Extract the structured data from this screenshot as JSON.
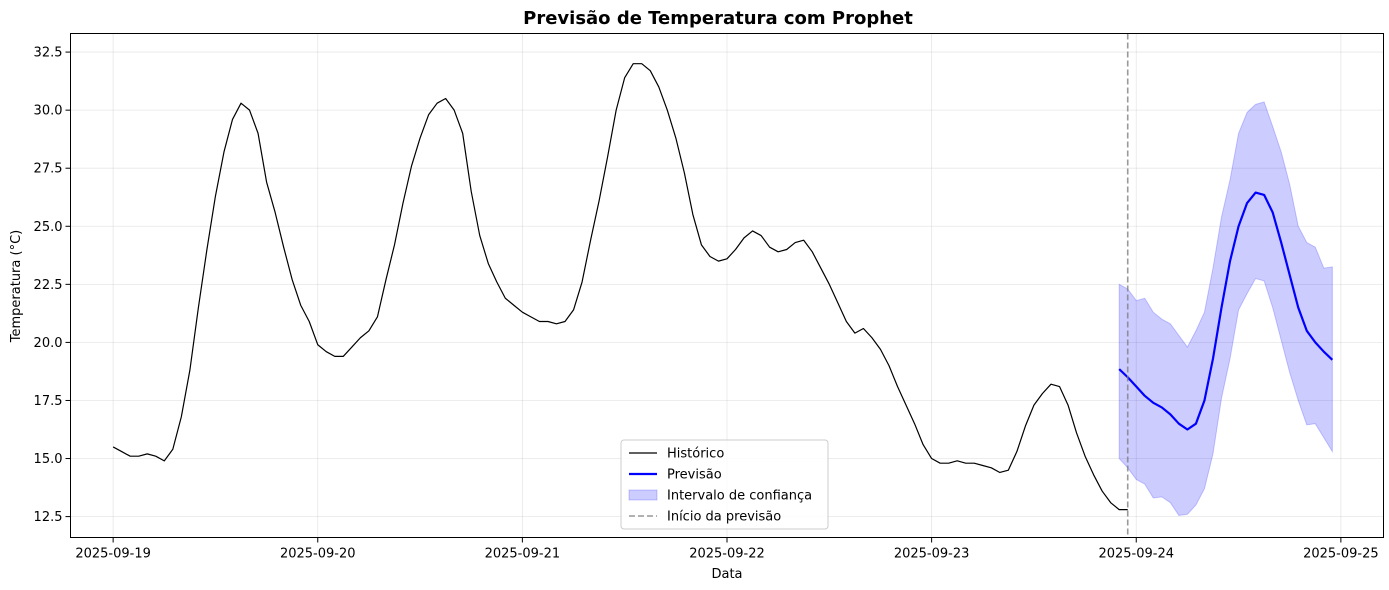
{
  "chart_data": {
    "type": "line",
    "title": "Previsão de Temperatura com Prophet",
    "xlabel": "Data",
    "ylabel": "Temperatura (°C)",
    "x_ticks": [
      "2025-09-19",
      "2025-09-20",
      "2025-09-21",
      "2025-09-22",
      "2025-09-23",
      "2025-09-24",
      "2025-09-25"
    ],
    "y_ticks": [
      "12.5",
      "15.0",
      "17.5",
      "20.0",
      "22.5",
      "25.0",
      "27.5",
      "30.0",
      "32.5"
    ],
    "xlim": [
      "2025-09-18 19:00",
      "2025-09-25 05:00"
    ],
    "ylim": [
      11.6,
      33.3
    ],
    "grid": true,
    "legend_position": "bottom-center",
    "forecast_start": "2025-09-23 23:00",
    "series": [
      {
        "name": "Histórico",
        "color": "#000000",
        "x_start": "2025-09-19 00:00",
        "step_hours": 1,
        "values": [
          15.5,
          15.3,
          15.1,
          15.1,
          15.2,
          15.1,
          14.9,
          15.4,
          16.8,
          18.8,
          21.5,
          24.0,
          26.3,
          28.2,
          29.6,
          30.3,
          30.0,
          29.0,
          26.9,
          25.6,
          24.1,
          22.7,
          21.6,
          20.9,
          19.9,
          19.6,
          19.4,
          19.4,
          19.8,
          20.2,
          20.5,
          21.1,
          22.7,
          24.2,
          26.0,
          27.6,
          28.8,
          29.8,
          30.3,
          30.5,
          30.0,
          29.0,
          26.5,
          24.6,
          23.4,
          22.6,
          21.9,
          21.6,
          21.3,
          21.1,
          20.9,
          20.9,
          20.8,
          20.9,
          21.4,
          22.6,
          24.4,
          26.1,
          28.0,
          30.0,
          31.4,
          32.0,
          32.0,
          31.7,
          31.0,
          30.0,
          28.8,
          27.3,
          25.5,
          24.2,
          23.7,
          23.5,
          23.6,
          24.0,
          24.5,
          24.8,
          24.6,
          24.1,
          23.9,
          24.0,
          24.3,
          24.4,
          23.9,
          23.2,
          22.5,
          21.7,
          20.9,
          20.4,
          20.6,
          20.2,
          19.7,
          19.0,
          18.1,
          17.3,
          16.5,
          15.6,
          15.0,
          14.8,
          14.8,
          14.9,
          14.8,
          14.8,
          14.7,
          14.6,
          14.4,
          14.5,
          15.3,
          16.4,
          17.3,
          17.8,
          18.2,
          18.1,
          17.3,
          16.1,
          15.1,
          14.3,
          13.6,
          13.1,
          12.8,
          12.8
        ]
      },
      {
        "name": "Previsão",
        "color": "#0000ff",
        "x_start": "2025-09-23 22:00",
        "step_hours": 1,
        "values": [
          18.85,
          18.5,
          18.1,
          17.7,
          17.4,
          17.2,
          16.9,
          16.5,
          16.25,
          16.5,
          17.5,
          19.3,
          21.5,
          23.5,
          25.0,
          26.0,
          26.45,
          26.35,
          25.6,
          24.3,
          22.9,
          21.5,
          20.5,
          20.0,
          19.6,
          19.25
        ],
        "lower": [
          15.0,
          14.6,
          14.1,
          13.9,
          13.3,
          13.35,
          13.1,
          12.55,
          12.6,
          13.0,
          13.7,
          15.2,
          17.6,
          19.3,
          21.4,
          22.1,
          22.75,
          22.65,
          21.5,
          20.1,
          18.7,
          17.5,
          16.45,
          16.5,
          15.9,
          15.3
        ],
        "upper": [
          22.5,
          22.3,
          21.8,
          21.9,
          21.3,
          21.0,
          20.8,
          20.3,
          19.8,
          20.5,
          21.3,
          23.2,
          25.4,
          27.0,
          29.0,
          29.9,
          30.25,
          30.35,
          29.3,
          28.2,
          26.8,
          25.0,
          24.3,
          24.1,
          23.2,
          23.25
        ]
      }
    ],
    "legend": [
      {
        "label": "Histórico",
        "kind": "line",
        "color": "#000000"
      },
      {
        "label": "Previsão",
        "kind": "line-bold",
        "color": "#0000ff"
      },
      {
        "label": "Intervalo de confiança",
        "kind": "patch",
        "color": "#0000ff"
      },
      {
        "label": "Início da previsão",
        "kind": "dashed",
        "color": "#808080"
      }
    ]
  }
}
